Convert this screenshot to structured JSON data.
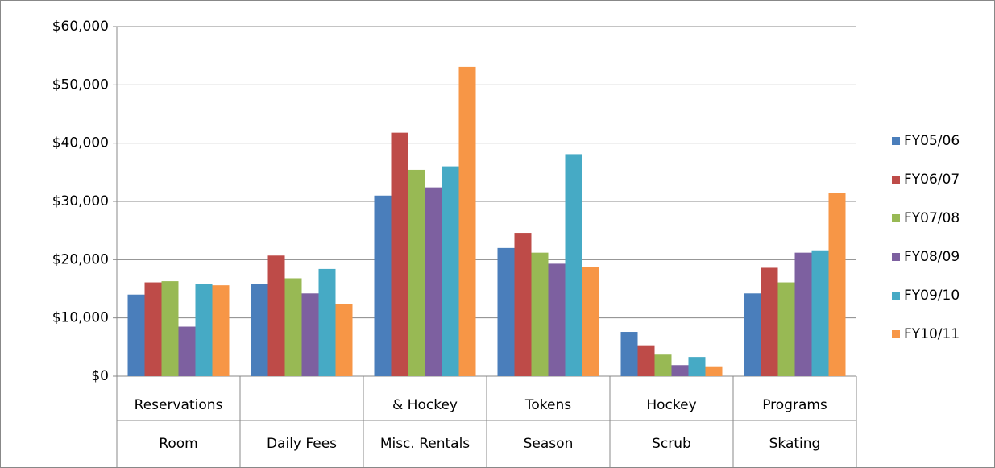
{
  "chart_data": {
    "type": "bar",
    "categories": [
      "Room",
      "Daily Fees",
      "Misc. Rentals",
      "Season",
      "Scrub",
      "Skating"
    ],
    "category_sublabels": [
      "Reservations",
      null,
      "& Hockey",
      "Tokens",
      "Hockey",
      "Programs"
    ],
    "series": [
      {
        "name": "FY05/06",
        "color": "#4a7ebb",
        "values": [
          14000,
          15800,
          31000,
          22000,
          7600,
          14200
        ]
      },
      {
        "name": "FY06/07",
        "color": "#be4b48",
        "values": [
          16100,
          20700,
          41800,
          24600,
          5300,
          18600
        ]
      },
      {
        "name": "FY07/08",
        "color": "#98b954",
        "values": [
          16300,
          16800,
          35400,
          21200,
          3700,
          16100
        ]
      },
      {
        "name": "FY08/09",
        "color": "#7d60a0",
        "values": [
          8500,
          14200,
          32400,
          19300,
          1900,
          21200
        ]
      },
      {
        "name": "FY09/10",
        "color": "#46aac5",
        "values": [
          15800,
          18400,
          36000,
          38100,
          3300,
          21600
        ]
      },
      {
        "name": "FY10/11",
        "color": "#f79646",
        "values": [
          15600,
          12400,
          53100,
          18800,
          1700,
          31500
        ]
      }
    ],
    "ylim": [
      0,
      60000
    ],
    "yticks": [
      {
        "value": 0,
        "label": "$0"
      },
      {
        "value": 10000,
        "label": "$10,000"
      },
      {
        "value": 20000,
        "label": "$20,000"
      },
      {
        "value": 30000,
        "label": "$30,000"
      },
      {
        "value": 40000,
        "label": "$40,000"
      },
      {
        "value": 50000,
        "label": "$50,000"
      },
      {
        "value": 60000,
        "label": "$60,000"
      }
    ],
    "grid": true,
    "legend": "right"
  }
}
